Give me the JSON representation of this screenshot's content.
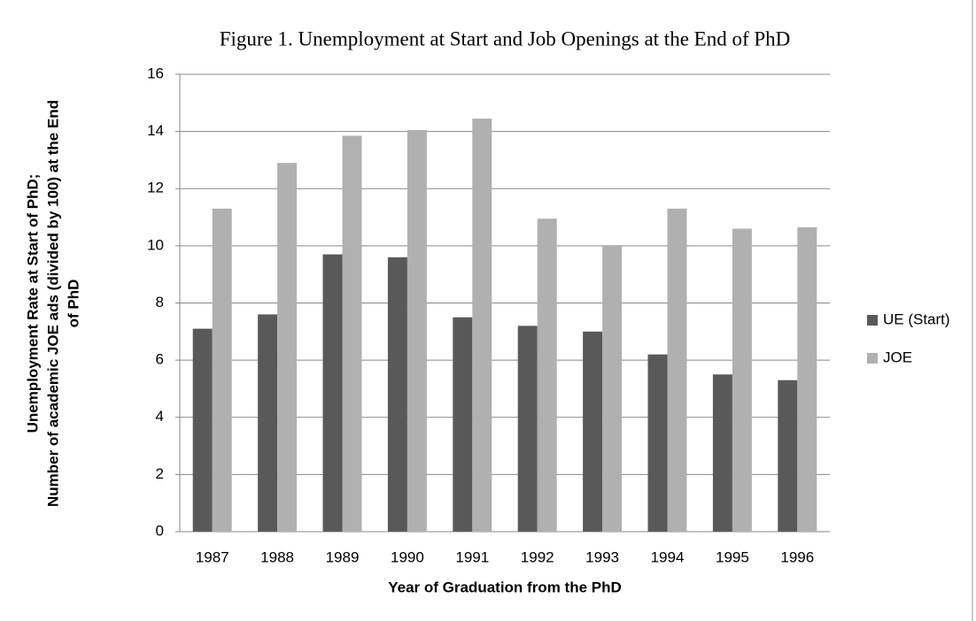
{
  "chart_data": {
    "type": "bar",
    "title": "Figure 1. Unemployment at Start and Job Openings at the End of PhD",
    "x_label": "Year of Graduation from the PhD",
    "y_label": [
      "Unemployment Rate at Start of PhD;",
      "Number of academic JOE ads (divided by 100) at the End",
      "of PhD"
    ],
    "categories": [
      "1987",
      "1988",
      "1989",
      "1990",
      "1991",
      "1992",
      "1993",
      "1994",
      "1995",
      "1996"
    ],
    "series": [
      {
        "name": "UE (Start)",
        "color": "#595959",
        "values": [
          7.1,
          7.6,
          9.7,
          9.6,
          7.5,
          7.2,
          7.0,
          6.2,
          5.5,
          5.3
        ]
      },
      {
        "name": "JOE",
        "color": "#b0b0b0",
        "values": [
          11.3,
          12.9,
          13.85,
          14.05,
          14.45,
          10.95,
          10.0,
          11.3,
          10.6,
          10.65
        ]
      }
    ],
    "ylim": [
      0,
      16
    ],
    "yticks": [
      0,
      2,
      4,
      6,
      8,
      10,
      12,
      14,
      16
    ],
    "grid": true,
    "legend": "right"
  }
}
